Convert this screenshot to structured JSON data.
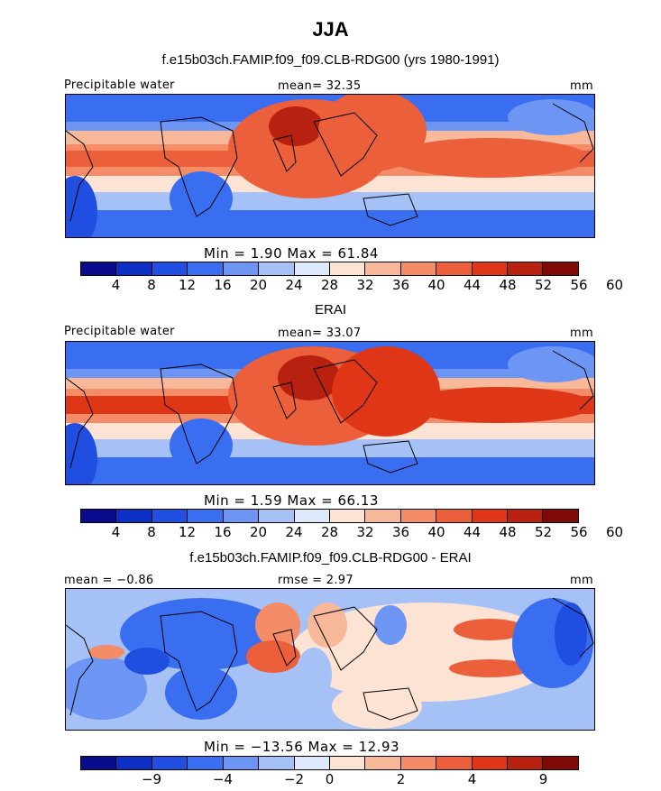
{
  "title": "JJA",
  "colors": {
    "full": [
      "#0a0a8c",
      "#0c2fc4",
      "#1f4ee0",
      "#3a6ef0",
      "#6d95f3",
      "#a6c1f6",
      "#dde8fb",
      "#fde3d4",
      "#f8b89a",
      "#f38c67",
      "#ec5f3b",
      "#e03618",
      "#b8210f",
      "#800a05"
    ],
    "diff": [
      "#0a0a8c",
      "#0c2fc4",
      "#1f4ee0",
      "#3a6ef0",
      "#6d95f3",
      "#a6c1f6",
      "#dde8fb",
      "#fde3d4",
      "#f8b89a",
      "#f38c67",
      "#ec5f3b",
      "#e03618",
      "#b8210f",
      "#800a05"
    ]
  },
  "panels": [
    {
      "subtitle": "f.e15b03ch.FAMIP.f09_f09.CLB-RDG00 (yrs 1980-1991)",
      "left_label": "Precipitable water",
      "center_label": "mean=  32.35",
      "right_label": "mm",
      "minmax": "Min =     1.90  Max =   61.84",
      "ticks": [
        "4",
        "8",
        "12",
        "16",
        "20",
        "24",
        "28",
        "32",
        "36",
        "40",
        "44",
        "48",
        "52",
        "56",
        "60"
      ]
    },
    {
      "subtitle": "ERAI",
      "left_label": "Precipitable water",
      "center_label": "mean=  33.07",
      "right_label": "mm",
      "minmax": "Min =     1.59  Max =   66.13",
      "ticks": [
        "4",
        "8",
        "12",
        "16",
        "20",
        "24",
        "28",
        "32",
        "36",
        "40",
        "44",
        "48",
        "52",
        "56",
        "60"
      ]
    },
    {
      "subtitle": "f.e15b03ch.FAMIP.f09_f09.CLB-RDG00 - ERAI",
      "left_label": "mean =  −0.86",
      "center_label": "rmse =    2.97",
      "right_label": "mm",
      "minmax": "Min = −13.56  Max =  12.93",
      "ticks": [
        "−9",
        "−4",
        "−2",
        "0",
        "2",
        "4",
        "9"
      ]
    }
  ]
}
